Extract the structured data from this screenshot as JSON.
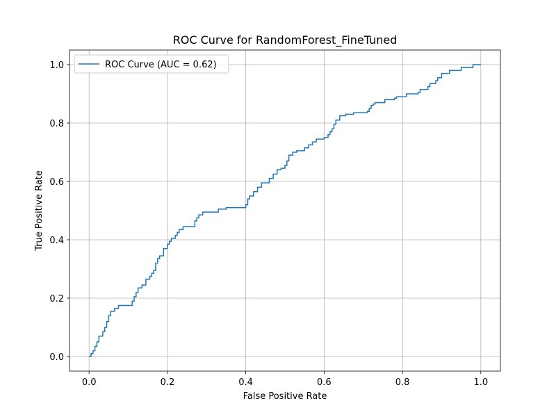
{
  "chart_data": {
    "type": "line",
    "title": "ROC Curve for RandomForest_FineTuned",
    "xlabel": "False Positive Rate",
    "ylabel": "True Positive Rate",
    "xlim": [
      -0.05,
      1.05
    ],
    "ylim": [
      -0.05,
      1.05
    ],
    "xticks": [
      0.0,
      0.2,
      0.4,
      0.6,
      0.8,
      1.0
    ],
    "yticks": [
      0.0,
      0.2,
      0.4,
      0.6,
      0.8,
      1.0
    ],
    "xtick_labels": [
      "0.0",
      "0.2",
      "0.4",
      "0.6",
      "0.8",
      "1.0"
    ],
    "ytick_labels": [
      "0.0",
      "0.2",
      "0.4",
      "0.6",
      "0.8",
      "1.0"
    ],
    "grid": true,
    "legend_position": "upper left",
    "series": [
      {
        "name": "ROC Curve (AUC = 0.62)",
        "color": "#1f77b4",
        "step": true,
        "x": [
          0.0,
          0.005,
          0.01,
          0.015,
          0.02,
          0.025,
          0.035,
          0.04,
          0.045,
          0.05,
          0.055,
          0.065,
          0.075,
          0.11,
          0.115,
          0.12,
          0.125,
          0.135,
          0.145,
          0.155,
          0.16,
          0.165,
          0.17,
          0.175,
          0.18,
          0.19,
          0.2,
          0.205,
          0.21,
          0.22,
          0.225,
          0.23,
          0.24,
          0.25,
          0.27,
          0.275,
          0.28,
          0.29,
          0.33,
          0.35,
          0.4,
          0.405,
          0.41,
          0.42,
          0.43,
          0.44,
          0.46,
          0.47,
          0.48,
          0.49,
          0.5,
          0.505,
          0.51,
          0.52,
          0.53,
          0.55,
          0.56,
          0.57,
          0.58,
          0.6,
          0.61,
          0.615,
          0.62,
          0.625,
          0.63,
          0.64,
          0.655,
          0.675,
          0.71,
          0.715,
          0.72,
          0.725,
          0.73,
          0.755,
          0.78,
          0.785,
          0.81,
          0.84,
          0.845,
          0.865,
          0.87,
          0.885,
          0.89,
          0.9,
          0.92,
          0.95,
          0.98,
          1.0
        ],
        "y": [
          0.0,
          0.01,
          0.02,
          0.035,
          0.05,
          0.07,
          0.085,
          0.1,
          0.12,
          0.14,
          0.155,
          0.165,
          0.175,
          0.19,
          0.205,
          0.22,
          0.235,
          0.245,
          0.265,
          0.275,
          0.285,
          0.295,
          0.32,
          0.335,
          0.345,
          0.37,
          0.385,
          0.395,
          0.405,
          0.415,
          0.425,
          0.435,
          0.445,
          0.445,
          0.465,
          0.475,
          0.485,
          0.495,
          0.505,
          0.51,
          0.52,
          0.54,
          0.55,
          0.565,
          0.58,
          0.595,
          0.61,
          0.625,
          0.64,
          0.645,
          0.655,
          0.67,
          0.69,
          0.7,
          0.705,
          0.715,
          0.725,
          0.735,
          0.745,
          0.75,
          0.76,
          0.77,
          0.78,
          0.795,
          0.81,
          0.825,
          0.83,
          0.835,
          0.84,
          0.85,
          0.86,
          0.865,
          0.87,
          0.88,
          0.885,
          0.89,
          0.9,
          0.905,
          0.915,
          0.925,
          0.935,
          0.945,
          0.955,
          0.97,
          0.98,
          0.99,
          1.0,
          1.0
        ]
      }
    ]
  }
}
